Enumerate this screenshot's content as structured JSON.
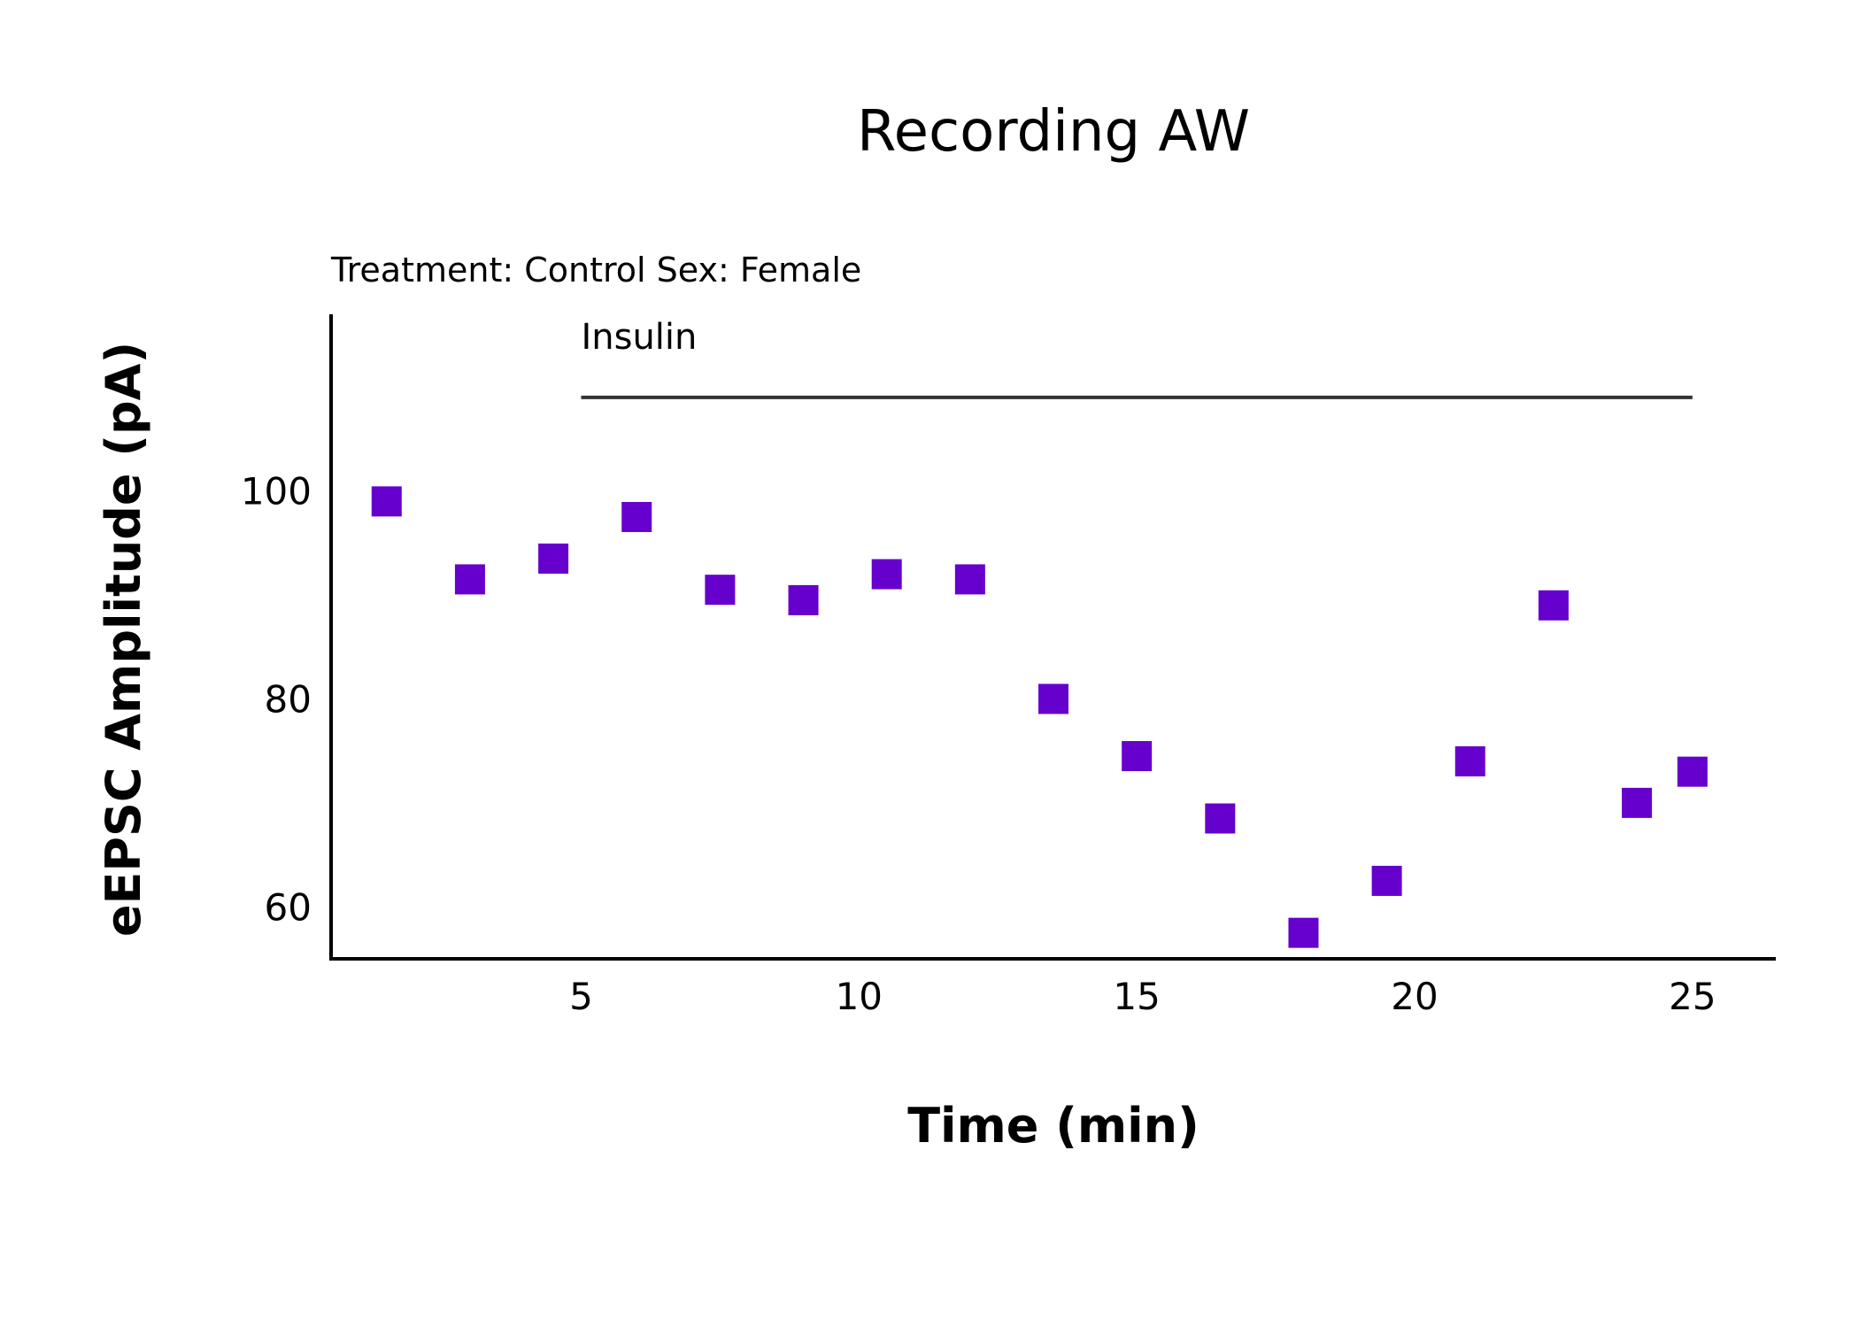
{
  "chart_data": {
    "type": "scatter",
    "title": "Recording AW",
    "subtitle": "Treatment: Control  Sex: Female",
    "xlabel": "Time (min)",
    "ylabel": "eEPSC Amplitude (pA)",
    "xlim": [
      0.5,
      26.5
    ],
    "ylim": [
      55,
      117
    ],
    "xticks": [
      5,
      10,
      15,
      20,
      25
    ],
    "yticks": [
      60,
      80,
      100
    ],
    "grid": false,
    "marker": "square",
    "marker_color": "#6600cc",
    "points": [
      {
        "x": 1.5,
        "y": 99
      },
      {
        "x": 3,
        "y": 91.5
      },
      {
        "x": 4.5,
        "y": 93.5
      },
      {
        "x": 6,
        "y": 97.5
      },
      {
        "x": 7.5,
        "y": 90.5
      },
      {
        "x": 9,
        "y": 89.5
      },
      {
        "x": 10.5,
        "y": 92
      },
      {
        "x": 12,
        "y": 91.5
      },
      {
        "x": 13.5,
        "y": 80
      },
      {
        "x": 15,
        "y": 74.5
      },
      {
        "x": 16.5,
        "y": 68.5
      },
      {
        "x": 18,
        "y": 57.5
      },
      {
        "x": 19.5,
        "y": 62.5
      },
      {
        "x": 21,
        "y": 74
      },
      {
        "x": 22.5,
        "y": 89
      },
      {
        "x": 24,
        "y": 70
      },
      {
        "x": 25,
        "y": 73
      }
    ],
    "annotations": [
      {
        "text": "Insulin",
        "type": "bar",
        "x_start": 5,
        "x_end": 25,
        "y": 109
      }
    ]
  }
}
